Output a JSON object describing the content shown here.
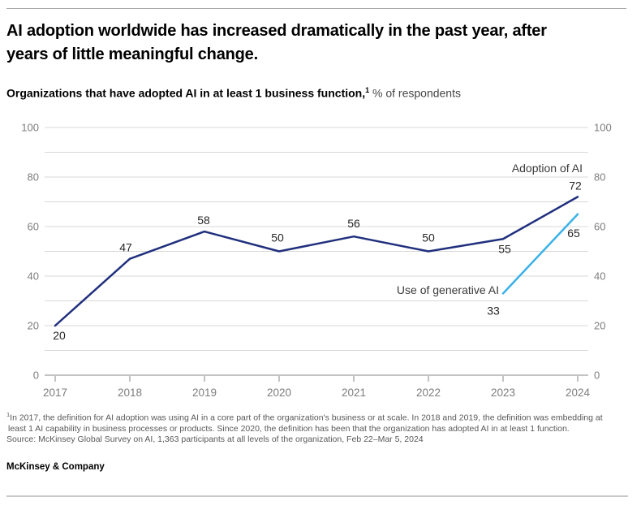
{
  "page": {
    "brand": "McKinsey & Company"
  },
  "header": {
    "title_line1": "AI adoption worldwide has increased dramatically in the past year, after",
    "title_line2": "years of little meaningful change.",
    "subtitle_bold": "Organizations that have adopted AI in at least 1 business function,",
    "subtitle_footnote_marker": "1",
    "subtitle_rest": " % of respondents"
  },
  "chart_data": {
    "type": "line",
    "title": "Organizations that have adopted AI in at least 1 business function, % of respondents",
    "x": [
      "2017",
      "2018",
      "2019",
      "2020",
      "2021",
      "2022",
      "2023",
      "2024"
    ],
    "ylim": [
      0,
      100
    ],
    "ytick_step": 10,
    "ytick_labeled": [
      0,
      20,
      40,
      60,
      80,
      100
    ],
    "grid": true,
    "axes_mirrored": true,
    "legend_position": "inline-annotations",
    "series": [
      {
        "name": "Adoption of AI",
        "color": "#21307e",
        "values": [
          20,
          47,
          58,
          50,
          56,
          50,
          55,
          72
        ]
      },
      {
        "name": "Use of generative AI",
        "color": "#3ab1e8",
        "values": [
          null,
          null,
          null,
          null,
          null,
          null,
          33,
          65
        ]
      }
    ]
  },
  "footnotes": {
    "marker": "1",
    "line1": "In 2017, the definition for AI adoption was using AI in a core part of the organization's business or at scale. In 2018 and 2019, the definition was embedding at",
    "line2": "least 1 AI capability in business processes or products. Since 2020, the definition has been that the organization has adopted AI in at least 1 function.",
    "source": "Source: McKinsey Global Survey on AI, 1,363 participants at all levels of the organization, Feb 22–Mar 5, 2024"
  },
  "colors": {
    "adoption_line": "#21307e",
    "genai_line": "#3ab1e8",
    "grid": "#d8d8d8",
    "axis": "#878787",
    "axis_text": "#7d7d7d",
    "label_text": "#262626",
    "annotation_text": "#3a3a3a"
  }
}
